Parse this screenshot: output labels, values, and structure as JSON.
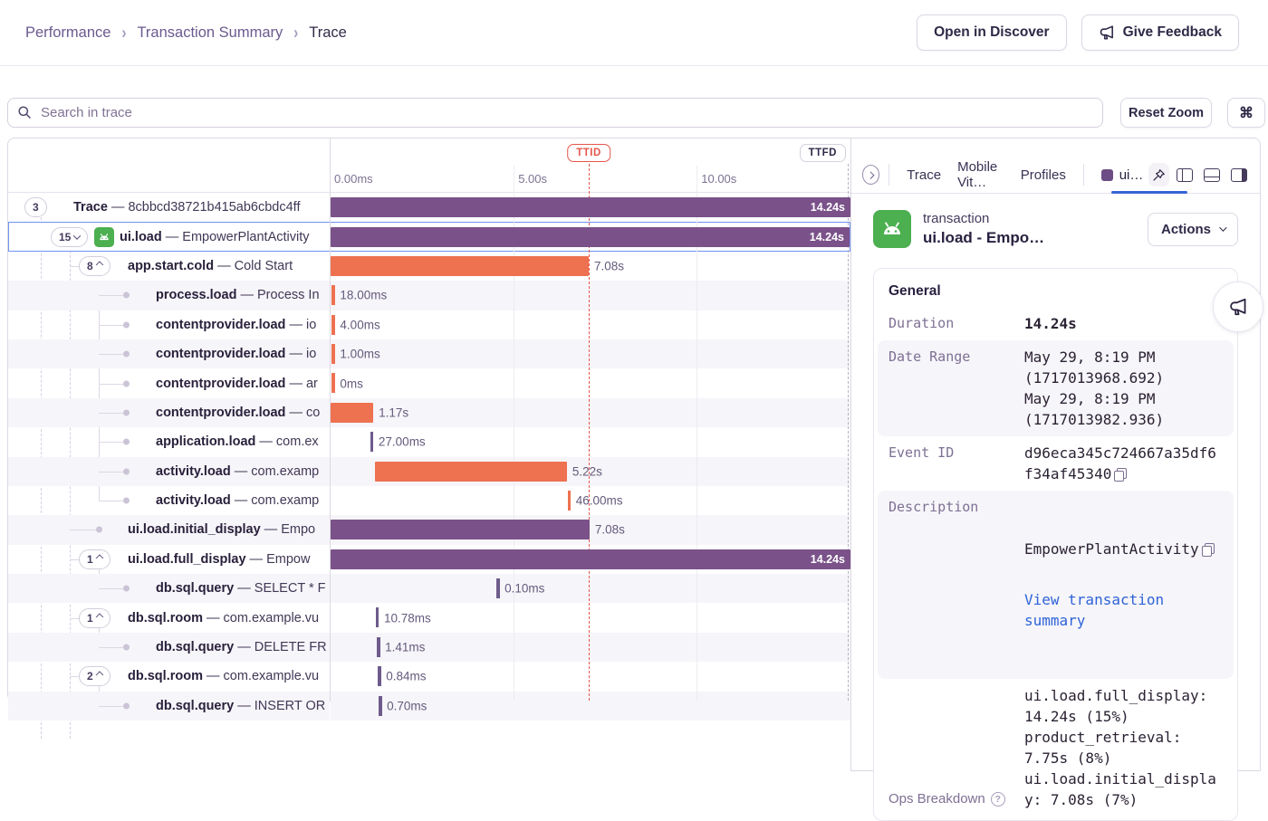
{
  "breadcrumb": {
    "items": [
      "Performance",
      "Transaction Summary",
      "Trace"
    ]
  },
  "header": {
    "open_in_discover": "Open in Discover",
    "give_feedback": "Give Feedback"
  },
  "toolbar": {
    "search_placeholder": "Search in trace",
    "reset_zoom": "Reset Zoom",
    "shortcut": "⌘"
  },
  "colors": {
    "purple_bar": "#7a5289",
    "orange_bar": "#ee7150",
    "selection_blue": "#7092f0",
    "ttid_red": "#e4584b",
    "link_blue": "#2e63d8",
    "active_tab_underline": "#3764d6"
  },
  "timeline": {
    "axis_ticks": [
      {
        "label": "0.00ms",
        "left": "0.7%"
      },
      {
        "label": "5.00s",
        "left": "36.1%"
      },
      {
        "label": "10.00s",
        "left": "71.3%"
      }
    ],
    "gridlines": [
      "35.2%",
      "70.4%"
    ],
    "markers": {
      "ttid": {
        "label": "TTID",
        "left": "49.65%"
      },
      "ttfd": {
        "label": "TTFD"
      }
    }
  },
  "trace": {
    "rows": [
      {
        "op": "Trace",
        "desc": "— 8cbbcd38721b415ab6cbdc4ff",
        "depth": 0,
        "badge": "3",
        "bar": {
          "kind": "bar",
          "color": "purple",
          "left": 0,
          "width": 100,
          "label": "14.24s",
          "inside": true
        }
      },
      {
        "op": "ui.load",
        "desc": "— EmpowerPlantActivity",
        "depth": 1,
        "badge": "15",
        "chevron": "down",
        "icon": "android",
        "selected": true,
        "bar": {
          "kind": "bar",
          "color": "purple",
          "left": 0,
          "width": 100,
          "label": "14.24s",
          "inside": true
        }
      },
      {
        "op": "app.start.cold",
        "desc": "— Cold Start",
        "depth": 2,
        "badge": "8",
        "chevron": "up",
        "bar": {
          "kind": "bar",
          "color": "orange",
          "left": 0,
          "width": 49.65,
          "label": "7.08s"
        }
      },
      {
        "op": "process.load",
        "desc": "— Process In",
        "depth": 3,
        "bar": {
          "kind": "tick",
          "color": "orange",
          "left": 0.25,
          "label": "18.00ms"
        }
      },
      {
        "op": "contentprovider.load",
        "desc": "— io",
        "depth": 3,
        "bar": {
          "kind": "tick",
          "color": "orange",
          "left": 0.25,
          "label": "4.00ms"
        }
      },
      {
        "op": "contentprovider.load",
        "desc": "— io",
        "depth": 3,
        "bar": {
          "kind": "tick",
          "color": "orange",
          "left": 0.25,
          "label": "1.00ms"
        }
      },
      {
        "op": "contentprovider.load",
        "desc": "— ar",
        "depth": 3,
        "bar": {
          "kind": "tick",
          "color": "orange",
          "left": 0.25,
          "label": "0ms"
        }
      },
      {
        "op": "contentprovider.load",
        "desc": "— co",
        "depth": 3,
        "bar": {
          "kind": "bar",
          "color": "orange",
          "left": 0,
          "width": 8.2,
          "label": "1.17s"
        }
      },
      {
        "op": "application.load",
        "desc": "— com.ex",
        "depth": 3,
        "bar": {
          "kind": "tick",
          "color": "purple",
          "left": 7.65,
          "label": "27.00ms"
        }
      },
      {
        "op": "activity.load",
        "desc": "— com.examp",
        "depth": 3,
        "bar": {
          "kind": "bar",
          "color": "orange",
          "left": 8.55,
          "width": 36.9,
          "label": "5.22s"
        }
      },
      {
        "op": "activity.load",
        "desc": "— com.examp",
        "depth": 3,
        "bar": {
          "kind": "tick",
          "color": "orange",
          "left": 45.6,
          "label": "46.00ms"
        }
      },
      {
        "op": "ui.load.initial_display",
        "desc": "— Empo",
        "depth": 2,
        "bar": {
          "kind": "bar",
          "color": "purple",
          "left": 0,
          "width": 49.8,
          "label": "7.08s"
        }
      },
      {
        "op": "ui.load.full_display",
        "desc": "— Empow",
        "depth": 2,
        "badge": "1",
        "chevron": "up",
        "bar": {
          "kind": "bar",
          "color": "purple",
          "left": 0,
          "width": 100,
          "label": "14.24s",
          "inside": true
        }
      },
      {
        "op": "db.sql.query",
        "desc": "— SELECT * F",
        "depth": 3,
        "bar": {
          "kind": "tick",
          "color": "purple",
          "left": 31.9,
          "label": "0.10ms"
        }
      },
      {
        "op": "db.sql.room",
        "desc": "— com.example.vu",
        "depth": 2,
        "badge": "1",
        "chevron": "up",
        "bar": {
          "kind": "tick",
          "color": "purple",
          "left": 8.7,
          "label": "10.78ms"
        }
      },
      {
        "op": "db.sql.query",
        "desc": "— DELETE FR",
        "depth": 3,
        "bar": {
          "kind": "tick",
          "color": "purple",
          "left": 8.9,
          "label": "1.41ms"
        }
      },
      {
        "op": "db.sql.room",
        "desc": "— com.example.vu",
        "depth": 2,
        "badge": "2",
        "chevron": "up",
        "bar": {
          "kind": "tick",
          "color": "purple",
          "left": 9.1,
          "label": "0.84ms"
        }
      },
      {
        "op": "db.sql.query",
        "desc": "— INSERT OR",
        "depth": 3,
        "bar": {
          "kind": "tick",
          "color": "purple",
          "left": 9.25,
          "label": "0.70ms"
        }
      }
    ]
  },
  "details": {
    "tabs": {
      "items": [
        "Trace",
        "Mobile Vit…",
        "Profiles"
      ],
      "active": "ui…"
    },
    "txn": {
      "kind": "transaction",
      "title": "ui.load - Empo…",
      "actions_label": "Actions"
    },
    "general": {
      "heading": "General",
      "duration_label": "Duration",
      "duration_value": "14.24s",
      "date_range_label": "Date Range",
      "date_range_value": "May 29, 8:19 PM\n(1717013968.692)\nMay 29, 8:19 PM\n(1717013982.936)",
      "event_id_label": "Event ID",
      "event_id_value": "d96eca345c724667a35df6f34af45340",
      "description_label": "Description",
      "description_value": "EmpowerPlantActivity",
      "view_link": "View transaction summary",
      "ops_label": "Ops Breakdown",
      "ops_value": "ui.load.full_display: 14.24s (15%)\nproduct_retrieval: 7.75s (8%)\nui.load.initial_display: 7.08s (7%)"
    }
  }
}
